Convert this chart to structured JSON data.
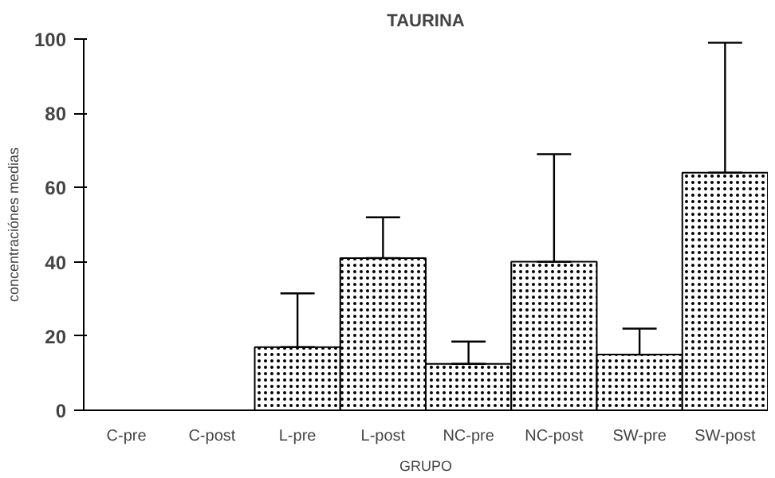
{
  "chart_data": {
    "type": "bar",
    "title": "TAURINA",
    "xlabel": "GRUPO",
    "ylabel": "concentraciónes medias",
    "categories": [
      "C-pre",
      "C-post",
      "L-pre",
      "L-post",
      "NC-pre",
      "NC-post",
      "SW-pre",
      "SW-post"
    ],
    "values": [
      null,
      null,
      17,
      41,
      12.5,
      40,
      15,
      64
    ],
    "errors": [
      null,
      null,
      [
        17,
        31.5
      ],
      [
        41,
        52
      ],
      [
        12.5,
        18.5
      ],
      [
        40,
        69
      ],
      [
        15,
        22
      ],
      [
        64,
        99
      ]
    ],
    "color": "#000000",
    "ylim": [
      0,
      100
    ],
    "yticks": [
      0,
      20,
      40,
      60,
      80,
      100
    ],
    "grid": false
  }
}
